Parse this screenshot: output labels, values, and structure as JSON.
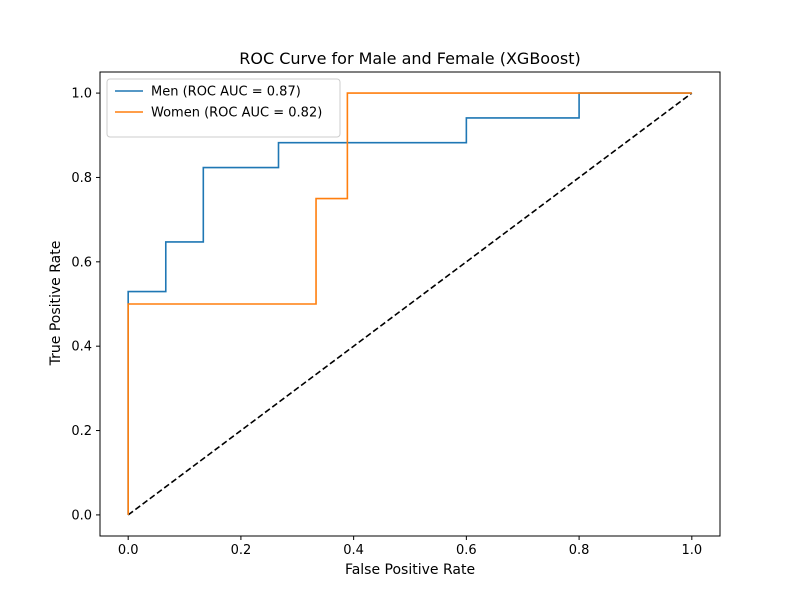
{
  "chart_data": {
    "type": "line",
    "title": "ROC Curve for Male and Female (XGBoost)",
    "xlabel": "False Positive Rate",
    "ylabel": "True Positive Rate",
    "xlim": [
      -0.05,
      1.05
    ],
    "ylim": [
      -0.05,
      1.05
    ],
    "xticks": [
      0.0,
      0.2,
      0.4,
      0.6,
      0.8,
      1.0
    ],
    "yticks": [
      0.0,
      0.2,
      0.4,
      0.6,
      0.8,
      1.0
    ],
    "xtick_labels": [
      "0.0",
      "0.2",
      "0.4",
      "0.6",
      "0.8",
      "1.0"
    ],
    "ytick_labels": [
      "0.0",
      "0.2",
      "0.4",
      "0.6",
      "0.8",
      "1.0"
    ],
    "grid": false,
    "legend_position": "top-left",
    "series": [
      {
        "name": "Men (ROC AUC = 0.87)",
        "color": "#1f77b4",
        "style": "solid",
        "x": [
          0.0,
          0.0,
          0.0667,
          0.0667,
          0.1333,
          0.1333,
          0.2667,
          0.2667,
          0.6,
          0.6,
          0.8,
          0.8,
          1.0
        ],
        "y": [
          0.0,
          0.5294,
          0.5294,
          0.6471,
          0.6471,
          0.8235,
          0.8235,
          0.8824,
          0.8824,
          0.9412,
          0.9412,
          1.0,
          1.0
        ]
      },
      {
        "name": "Women (ROC AUC = 0.82)",
        "color": "#ff7f0e",
        "style": "solid",
        "x": [
          0.0,
          0.0,
          0.3333,
          0.3333,
          0.3889,
          0.3889,
          1.0
        ],
        "y": [
          0.0,
          0.5,
          0.5,
          0.75,
          0.75,
          1.0,
          1.0
        ]
      }
    ],
    "reference_line": {
      "color": "#000000",
      "style": "dashed",
      "x": [
        0.0,
        1.0
      ],
      "y": [
        0.0,
        1.0
      ]
    }
  }
}
